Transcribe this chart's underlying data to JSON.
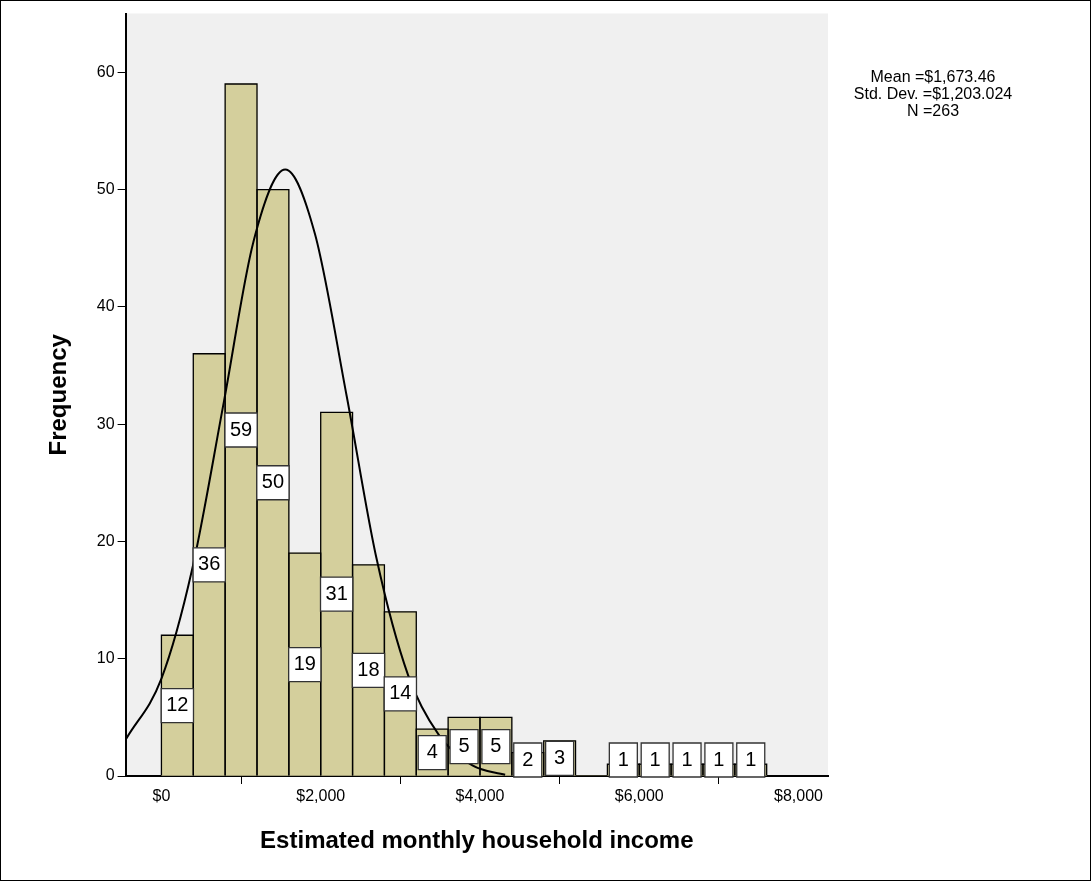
{
  "chart_data": {
    "type": "histogram",
    "xlabel": "Estimated monthly household income",
    "ylabel": "Frequency",
    "annotations": [
      "Mean =$1,673.46",
      "Std. Dev. =$1,203.024",
      "N =263"
    ],
    "xlim": [
      -450,
      8370
    ],
    "ylim": [
      0,
      65
    ],
    "xticks": [
      {
        "value": 0,
        "label": "$0"
      },
      {
        "value": 2000,
        "label": "$2,000"
      },
      {
        "value": 4000,
        "label": "$4,000"
      },
      {
        "value": 6000,
        "label": "$6,000"
      },
      {
        "value": 8000,
        "label": "$8,000"
      }
    ],
    "yticks": [
      0,
      10,
      20,
      30,
      40,
      50,
      60
    ],
    "series": [
      {
        "type": "histogram",
        "color": "#d4cf9c",
        "bins": [
          0,
          400,
          800,
          1200,
          1600,
          2000,
          2400,
          2800,
          3200,
          3600,
          4000,
          4400,
          4800,
          5200,
          5600,
          6000,
          6400,
          6800,
          7200,
          7600
        ],
        "values": [
          12,
          36,
          59,
          50,
          19,
          31,
          18,
          14,
          4,
          5,
          5,
          2,
          3,
          0,
          1,
          1,
          1,
          1,
          1
        ],
        "value_labels": [
          "12",
          "36",
          "59",
          "50",
          "19",
          "31",
          "18",
          "14",
          "4",
          "5",
          "5",
          "2",
          "3",
          null,
          "1",
          "1",
          "1",
          "1",
          "1"
        ]
      },
      {
        "type": "line",
        "color": "#000000",
        "x": [
          -440,
          0,
          385,
          784,
          1157,
          1555,
          1928,
          2326,
          2699,
          3097,
          3483,
          3905,
          4316
        ],
        "values": [
          3.2,
          8.3,
          17.6,
          31.9,
          45.6,
          51.7,
          46.2,
          32.4,
          18.6,
          8.6,
          3.5,
          0.9,
          0.1
        ]
      }
    ]
  }
}
